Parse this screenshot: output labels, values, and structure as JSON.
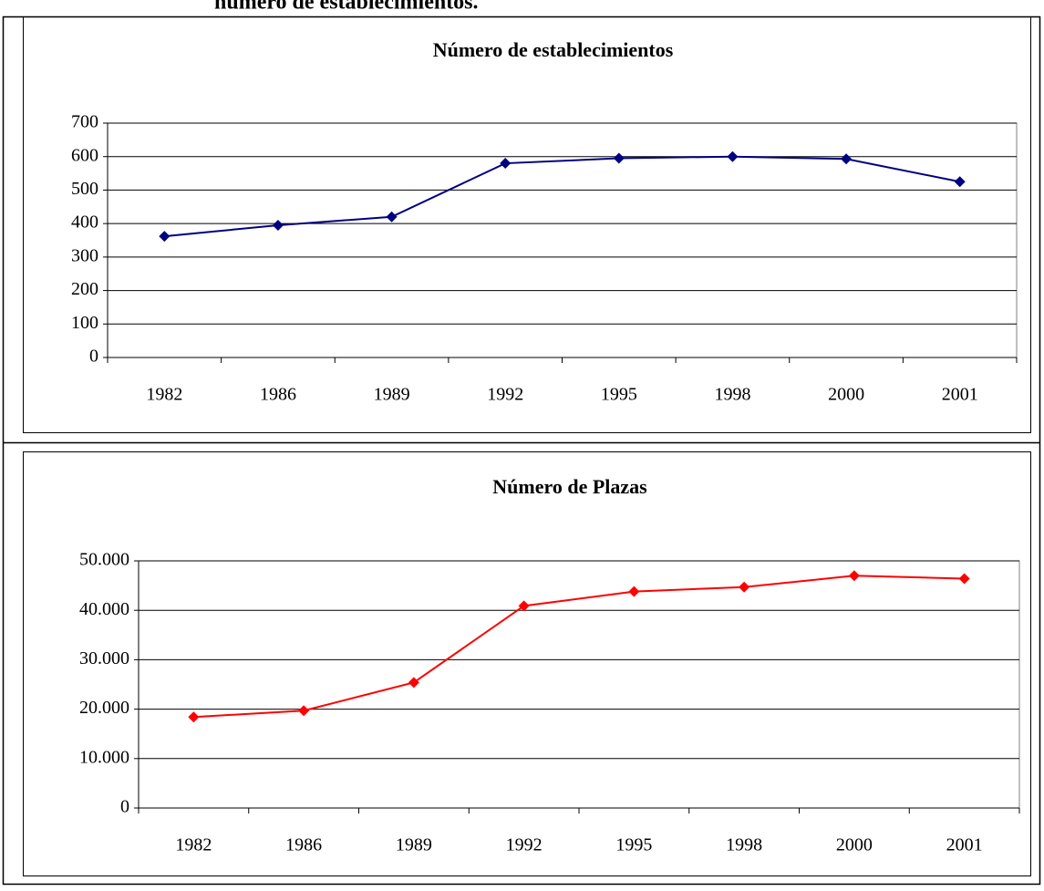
{
  "header": {
    "text": "número de establecimientos."
  },
  "chart_data": [
    {
      "type": "line",
      "title": "Número de establecimientos",
      "categories": [
        "1982",
        "1986",
        "1989",
        "1992",
        "1995",
        "1998",
        "2000",
        "2001"
      ],
      "series": [
        {
          "name": "Número de establecimientos",
          "color": "#000080",
          "values": [
            362,
            395,
            420,
            580,
            595,
            600,
            593,
            525
          ]
        }
      ],
      "ylim": [
        0,
        700
      ],
      "yticks": [
        0,
        100,
        200,
        300,
        400,
        500,
        600,
        700
      ],
      "grid": true
    },
    {
      "type": "line",
      "title": "Número de Plazas",
      "categories": [
        "1982",
        "1986",
        "1989",
        "1992",
        "1995",
        "1998",
        "2000",
        "2001"
      ],
      "series": [
        {
          "name": "Número de Plazas",
          "color": "#ff0000",
          "values": [
            18400,
            19700,
            25400,
            40900,
            43800,
            44700,
            47000,
            46400
          ]
        }
      ],
      "ylim": [
        0,
        50000
      ],
      "yticks": [
        0,
        {
          "value": 10000,
          "label": "10.000"
        },
        {
          "value": 20000,
          "label": "20.000"
        },
        {
          "value": 30000,
          "label": "30.000"
        },
        {
          "value": 40000,
          "label": "40.000"
        },
        {
          "value": 50000,
          "label": "50.000"
        }
      ],
      "grid": true
    }
  ]
}
